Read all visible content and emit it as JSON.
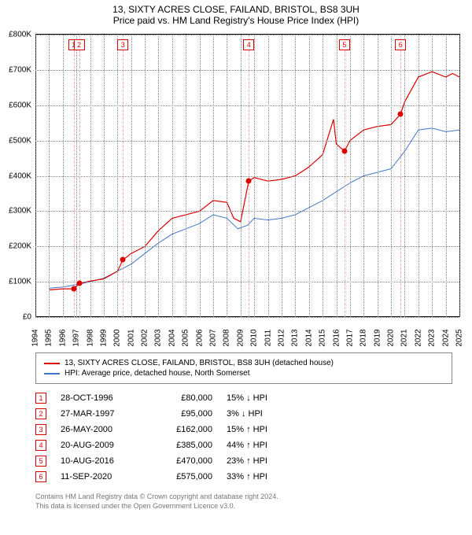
{
  "title": "13, SIXTY ACRES CLOSE, FAILAND, BRISTOL, BS8 3UH",
  "subtitle": "Price paid vs. HM Land Registry's House Price Index (HPI)",
  "chart": {
    "type": "line",
    "background_color": "#ffffff",
    "grid_color": "#999999",
    "x_range": [
      1994,
      2025
    ],
    "y_range": [
      0,
      800000
    ],
    "y_ticks": [
      0,
      100000,
      200000,
      300000,
      400000,
      500000,
      600000,
      700000,
      800000
    ],
    "y_tick_labels": [
      "£0",
      "£100K",
      "£200K",
      "£300K",
      "£400K",
      "£500K",
      "£600K",
      "£700K",
      "£800K"
    ],
    "x_ticks": [
      1994,
      1995,
      1996,
      1997,
      1998,
      1999,
      2000,
      2001,
      2002,
      2003,
      2004,
      2005,
      2006,
      2007,
      2008,
      2009,
      2010,
      2011,
      2012,
      2013,
      2014,
      2015,
      2016,
      2017,
      2018,
      2019,
      2020,
      2021,
      2022,
      2023,
      2024,
      2025
    ],
    "series_property": {
      "label": "13, SIXTY ACRES CLOSE, FAILAND, BRISTOL, BS8 3UH (detached house)",
      "color": "#dd0000",
      "line_width": 1.2,
      "data": [
        [
          1995.0,
          77000
        ],
        [
          1996.0,
          80000
        ],
        [
          1996.8,
          80000
        ],
        [
          1997.2,
          95000
        ],
        [
          1998.0,
          102000
        ],
        [
          1999.0,
          108000
        ],
        [
          2000.0,
          130000
        ],
        [
          2000.4,
          162000
        ],
        [
          2001.0,
          180000
        ],
        [
          2002.0,
          200000
        ],
        [
          2003.0,
          245000
        ],
        [
          2004.0,
          280000
        ],
        [
          2005.0,
          290000
        ],
        [
          2006.0,
          300000
        ],
        [
          2007.0,
          330000
        ],
        [
          2008.0,
          325000
        ],
        [
          2008.5,
          280000
        ],
        [
          2009.0,
          270000
        ],
        [
          2009.6,
          385000
        ],
        [
          2010.0,
          395000
        ],
        [
          2011.0,
          385000
        ],
        [
          2012.0,
          390000
        ],
        [
          2013.0,
          400000
        ],
        [
          2014.0,
          425000
        ],
        [
          2015.0,
          460000
        ],
        [
          2015.8,
          560000
        ],
        [
          2016.0,
          490000
        ],
        [
          2016.6,
          470000
        ],
        [
          2017.0,
          500000
        ],
        [
          2018.0,
          530000
        ],
        [
          2019.0,
          540000
        ],
        [
          2020.0,
          545000
        ],
        [
          2020.7,
          575000
        ],
        [
          2021.0,
          610000
        ],
        [
          2022.0,
          680000
        ],
        [
          2023.0,
          695000
        ],
        [
          2024.0,
          680000
        ],
        [
          2024.5,
          690000
        ],
        [
          2025.0,
          680000
        ]
      ]
    },
    "series_hpi": {
      "label": "HPI: Average price, detached house, North Somerset",
      "color": "#4477cc",
      "line_width": 1,
      "data": [
        [
          1995.0,
          82000
        ],
        [
          1996.0,
          85000
        ],
        [
          1997.0,
          92000
        ],
        [
          1998.0,
          100000
        ],
        [
          1999.0,
          110000
        ],
        [
          2000.0,
          130000
        ],
        [
          2001.0,
          150000
        ],
        [
          2002.0,
          180000
        ],
        [
          2003.0,
          210000
        ],
        [
          2004.0,
          235000
        ],
        [
          2005.0,
          250000
        ],
        [
          2006.0,
          265000
        ],
        [
          2007.0,
          290000
        ],
        [
          2008.0,
          280000
        ],
        [
          2008.8,
          250000
        ],
        [
          2009.5,
          260000
        ],
        [
          2010.0,
          280000
        ],
        [
          2011.0,
          275000
        ],
        [
          2012.0,
          280000
        ],
        [
          2013.0,
          290000
        ],
        [
          2014.0,
          310000
        ],
        [
          2015.0,
          330000
        ],
        [
          2016.0,
          355000
        ],
        [
          2017.0,
          380000
        ],
        [
          2018.0,
          400000
        ],
        [
          2019.0,
          410000
        ],
        [
          2020.0,
          420000
        ],
        [
          2021.0,
          470000
        ],
        [
          2022.0,
          530000
        ],
        [
          2023.0,
          535000
        ],
        [
          2024.0,
          525000
        ],
        [
          2025.0,
          530000
        ]
      ]
    },
    "sale_markers": [
      {
        "num": "1",
        "year": 1996.8,
        "price": 80000
      },
      {
        "num": "2",
        "year": 1997.2,
        "price": 95000
      },
      {
        "num": "3",
        "year": 2000.4,
        "price": 162000
      },
      {
        "num": "4",
        "year": 2009.6,
        "price": 385000
      },
      {
        "num": "5",
        "year": 2016.6,
        "price": 470000
      },
      {
        "num": "6",
        "year": 2020.7,
        "price": 575000
      }
    ],
    "marker_border_color": "#dd0000",
    "marker_line_color": "#eeaaaa"
  },
  "legend": {
    "items": [
      {
        "color": "#dd0000",
        "label": "13, SIXTY ACRES CLOSE, FAILAND, BRISTOL, BS8 3UH (detached house)"
      },
      {
        "color": "#4477cc",
        "label": "HPI: Average price, detached house, North Somerset"
      }
    ]
  },
  "sales": [
    {
      "num": "1",
      "date": "28-OCT-1996",
      "price": "£80,000",
      "pct": "15% ↓ HPI"
    },
    {
      "num": "2",
      "date": "27-MAR-1997",
      "price": "£95,000",
      "pct": "3% ↓ HPI"
    },
    {
      "num": "3",
      "date": "26-MAY-2000",
      "price": "£162,000",
      "pct": "15% ↑ HPI"
    },
    {
      "num": "4",
      "date": "20-AUG-2009",
      "price": "£385,000",
      "pct": "44% ↑ HPI"
    },
    {
      "num": "5",
      "date": "10-AUG-2016",
      "price": "£470,000",
      "pct": "23% ↑ HPI"
    },
    {
      "num": "6",
      "date": "11-SEP-2020",
      "price": "£575,000",
      "pct": "33% ↑ HPI"
    }
  ],
  "footer": {
    "line1": "Contains HM Land Registry data © Crown copyright and database right 2024.",
    "line2": "This data is licensed under the Open Government Licence v3.0."
  }
}
